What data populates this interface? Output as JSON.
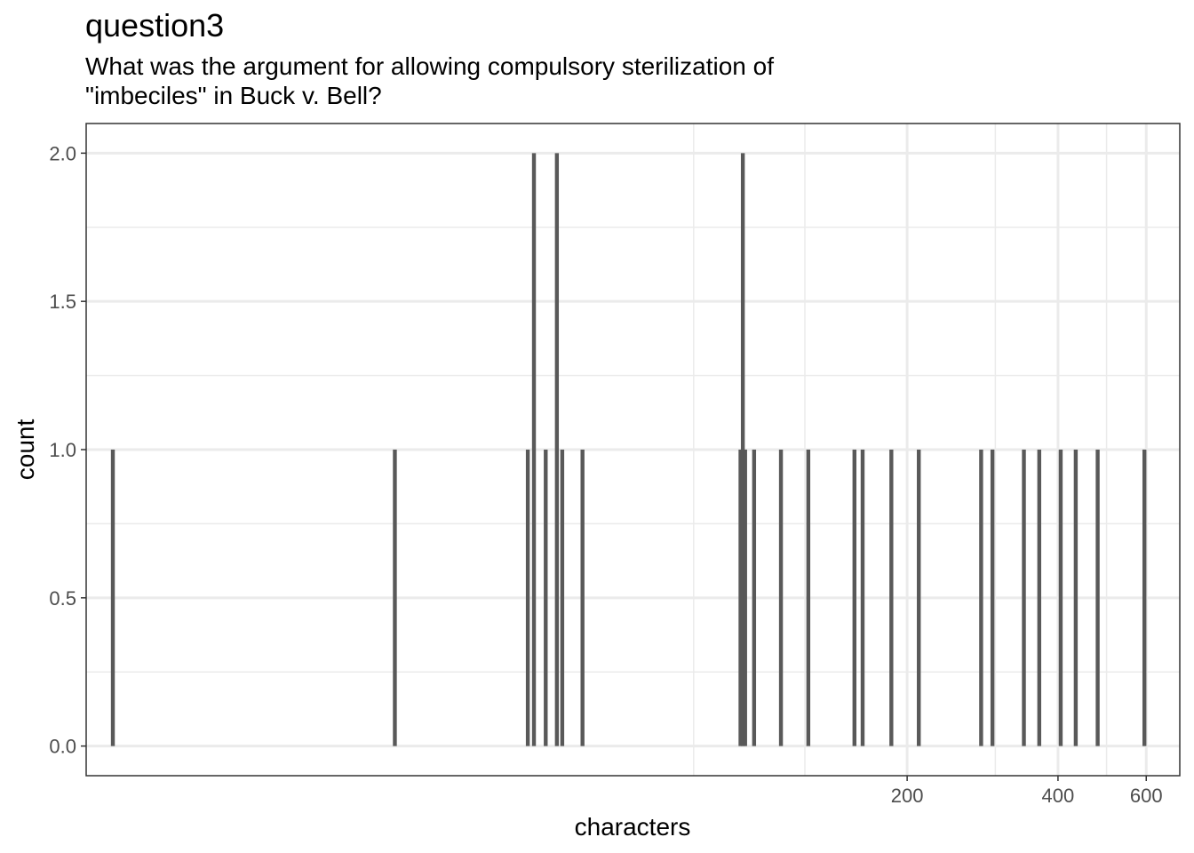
{
  "chart_data": {
    "type": "bar",
    "title": "question3",
    "subtitle": "What was the argument for allowing compulsory sterilization of\n\"imbeciles\" in Buck v. Bell?",
    "xlabel": "characters",
    "ylabel": "count",
    "x_scale": "log10",
    "xlim": [
      4.6,
      700
    ],
    "ylim": [
      -0.1,
      2.1
    ],
    "x_ticks": [
      200,
      400,
      600
    ],
    "x_tick_labels": [
      "200",
      "400",
      "600"
    ],
    "x_minor_gridlines": [
      75,
      125,
      300,
      500
    ],
    "y_ticks": [
      0,
      0.5,
      1,
      1.5,
      2
    ],
    "y_tick_labels": [
      "0.0",
      "0.5",
      "1.0",
      "1.5",
      "2.0"
    ],
    "grid": true,
    "bar_color": "#595959",
    "x": [
      5.2,
      19,
      35,
      36,
      38,
      40,
      41,
      45,
      93,
      94,
      95,
      99,
      112,
      127,
      157,
      163,
      186,
      211,
      281,
      296,
      342,
      367,
      405,
      434,
      480,
      595
    ],
    "values": [
      1,
      1,
      1,
      2,
      1,
      2,
      1,
      1,
      1,
      2,
      1,
      1,
      1,
      1,
      1,
      1,
      1,
      1,
      1,
      1,
      1,
      1,
      1,
      1,
      1,
      1
    ]
  }
}
